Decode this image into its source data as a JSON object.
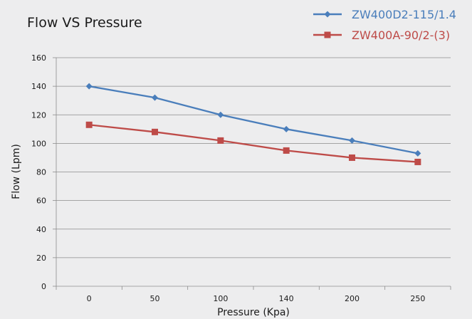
{
  "chart_data": {
    "type": "line",
    "title": "Flow VS Pressure",
    "xlabel": "Pressure (Kpa)",
    "ylabel": "Flow (Lpm)",
    "categories": [
      "0",
      "50",
      "100",
      "140",
      "200",
      "250"
    ],
    "ylim": [
      0,
      160
    ],
    "yticks": [
      "0",
      "20",
      "40",
      "60",
      "80",
      "100",
      "120",
      "140",
      "160"
    ],
    "grid": true,
    "legend_position": "top-right",
    "series": [
      {
        "name": "ZW400D2-115/1.4",
        "values": [
          140,
          132,
          120,
          110,
          102,
          93
        ],
        "color": "#4a7ebb",
        "marker": "diamond"
      },
      {
        "name": "ZW400A-90/2-(3)",
        "values": [
          113,
          108,
          102,
          95,
          90,
          87
        ],
        "color": "#be4b48",
        "marker": "square"
      }
    ]
  }
}
